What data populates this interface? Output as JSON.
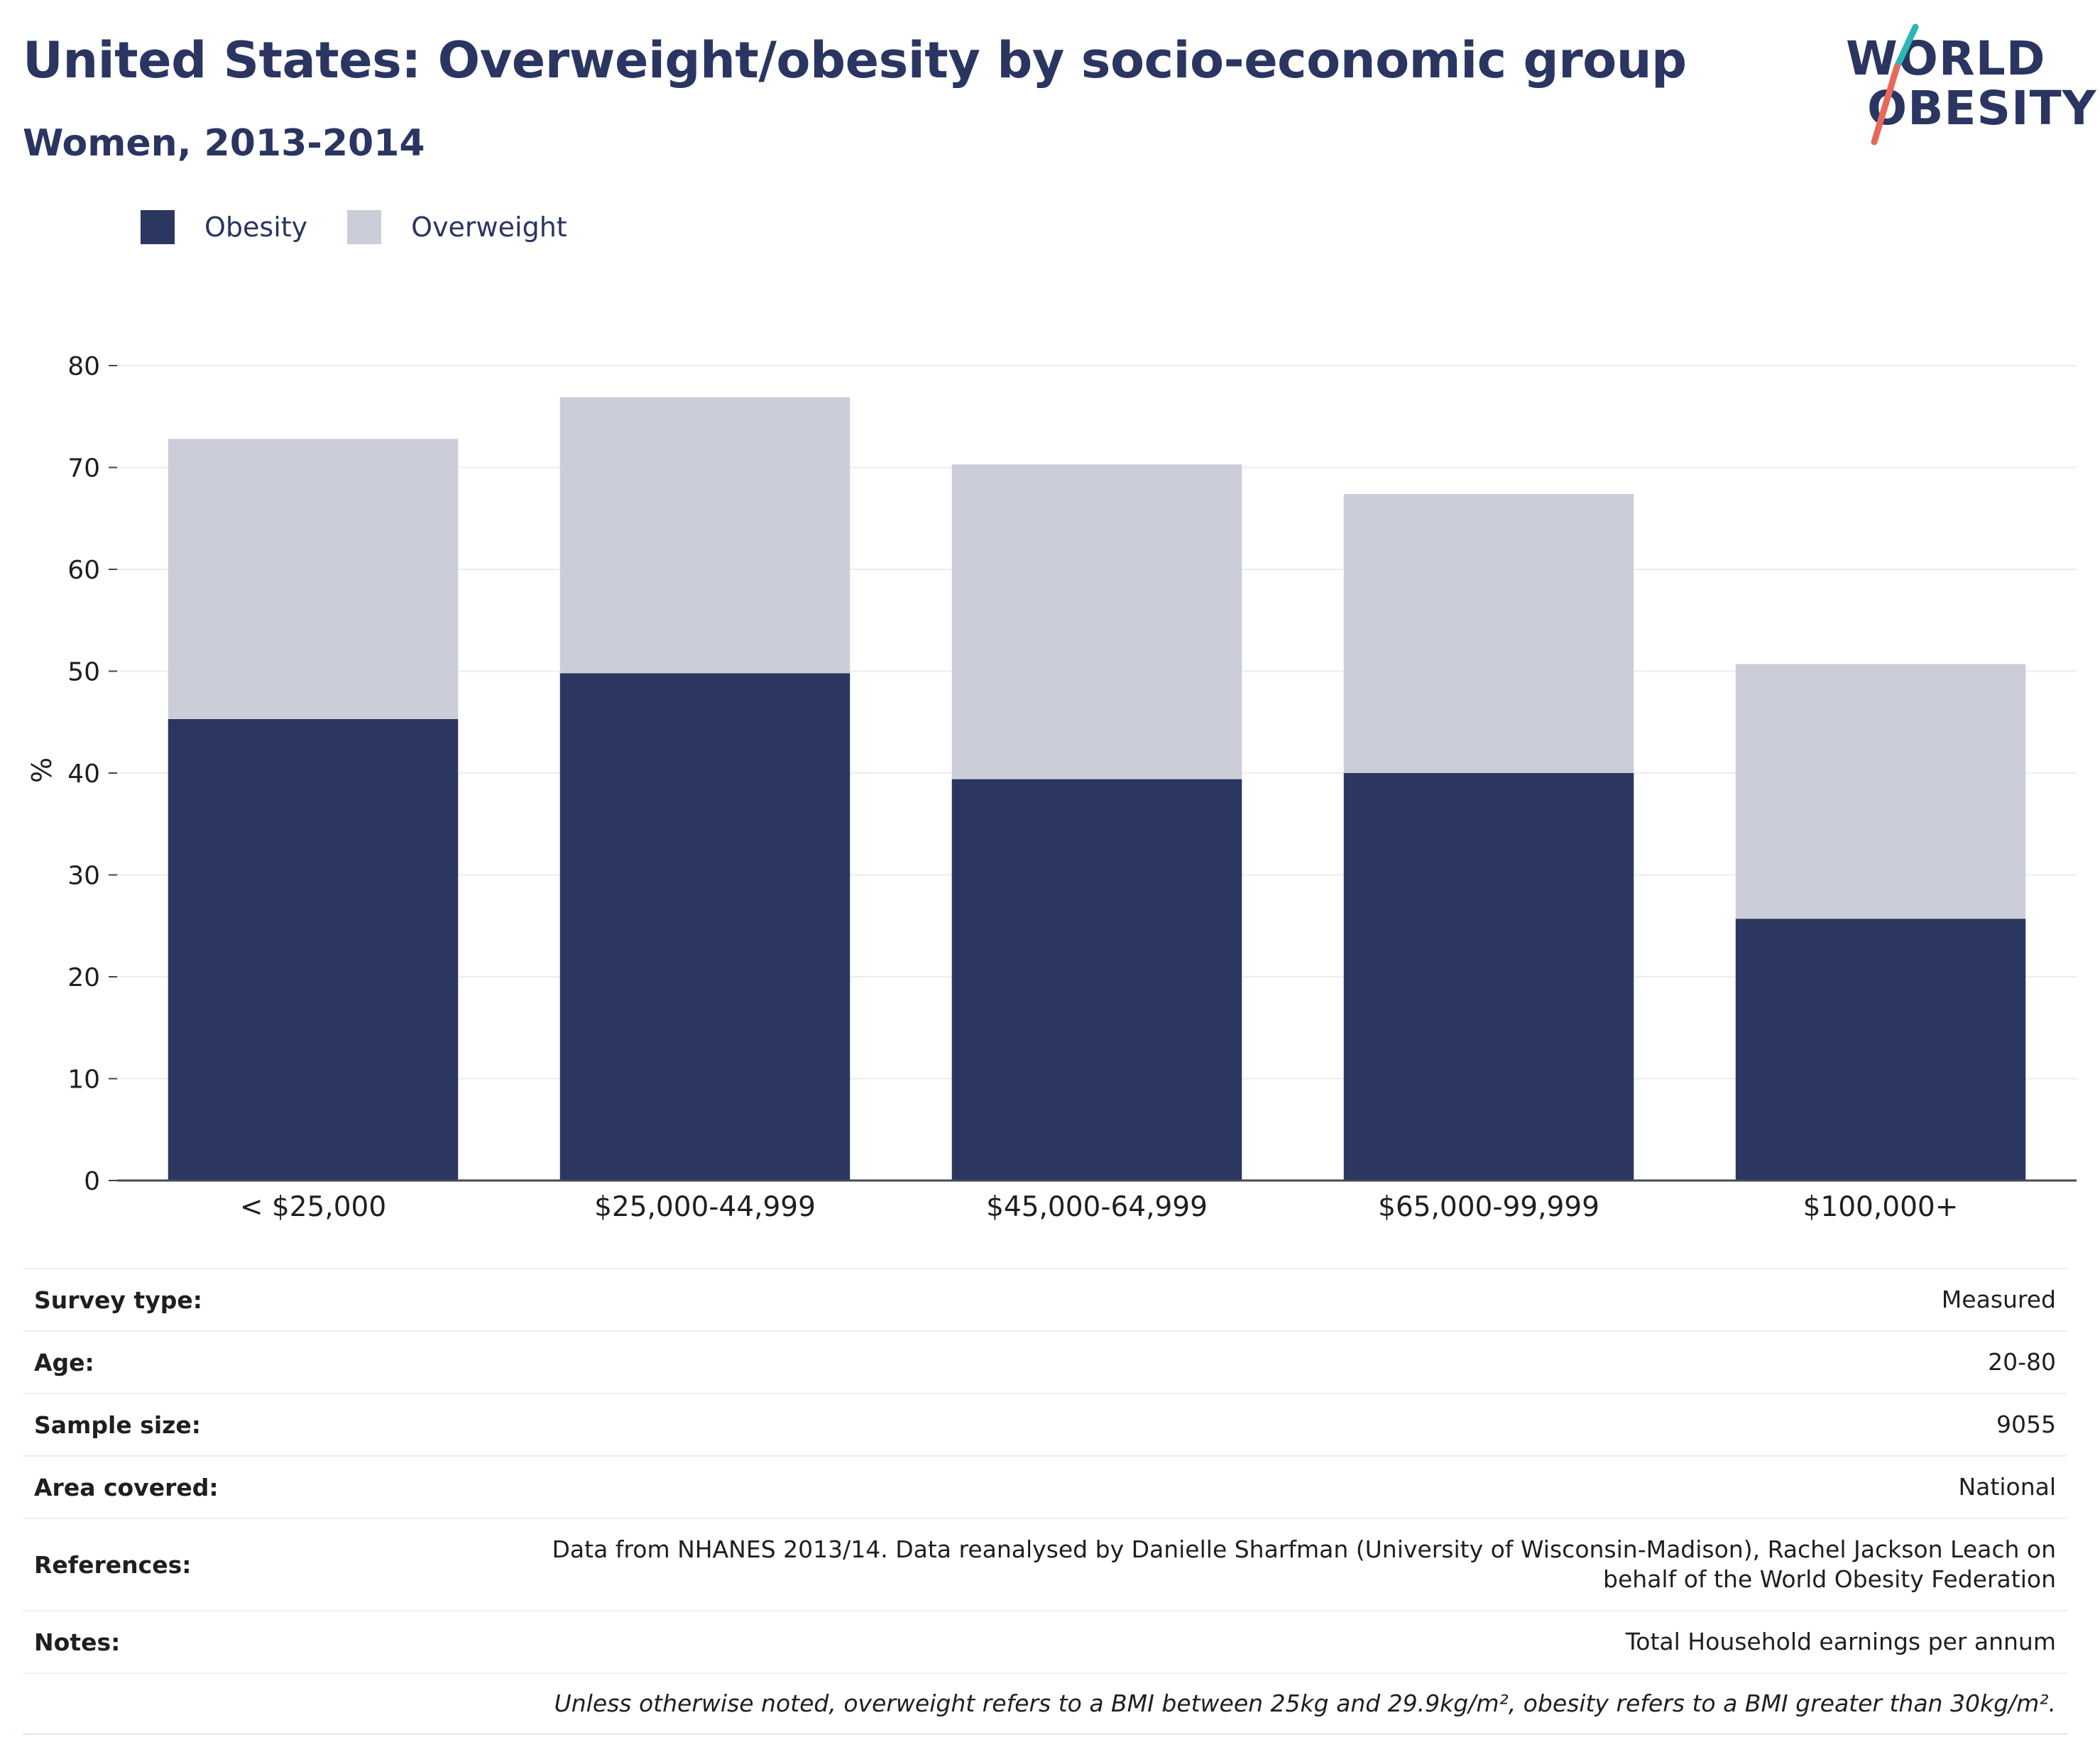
{
  "header": {
    "title": "United States: Overweight/obesity by socio-economic group",
    "subtitle": "Women, 2013-2014"
  },
  "logo": {
    "line1": "WORLD",
    "line2": "OBESITY"
  },
  "colors": {
    "obesity": "#2b3661",
    "overweight": "#cbcdd9",
    "text": "#2b3561",
    "accent_teal": "#2bb7b7",
    "accent_red": "#e8695a"
  },
  "legend": [
    {
      "label": "Obesity",
      "color": "#2b3661"
    },
    {
      "label": "Overweight",
      "color": "#cbcdd9"
    }
  ],
  "chart_data": {
    "type": "bar",
    "stacked": true,
    "categories": [
      "< $25,000",
      "$25,000-44,999",
      "$45,000-64,999",
      "$65,000-99,999",
      "$100,000+"
    ],
    "series": [
      {
        "name": "Obesity",
        "values": [
          45.3,
          49.8,
          39.4,
          40.0,
          25.7
        ]
      },
      {
        "name": "Overweight",
        "values": [
          27.5,
          27.1,
          30.9,
          27.4,
          25.0
        ]
      }
    ],
    "totals": [
      72.8,
      76.9,
      70.3,
      67.4,
      50.7
    ],
    "ylabel": "%",
    "ylim": [
      0,
      80
    ],
    "yticks": [
      0,
      10,
      20,
      30,
      40,
      50,
      60,
      70,
      80
    ],
    "grid": true,
    "legend_position": "top-left"
  },
  "info": [
    {
      "key": "Survey type:",
      "value": "Measured"
    },
    {
      "key": "Age:",
      "value": "20-80"
    },
    {
      "key": "Sample size:",
      "value": "9055"
    },
    {
      "key": "Area covered:",
      "value": "National"
    },
    {
      "key": "References:",
      "value": "Data from NHANES 2013/14. Data reanalysed by Danielle Sharfman (University of Wisconsin-Madison), Rachel Jackson Leach on behalf of the World Obesity Federation"
    },
    {
      "key": "Notes:",
      "value": "Total Household earnings per annum"
    }
  ],
  "footnote": "Unless otherwise noted, overweight refers to a BMI between 25kg and 29.9kg/m², obesity refers to a BMI greater than 30kg/m²."
}
